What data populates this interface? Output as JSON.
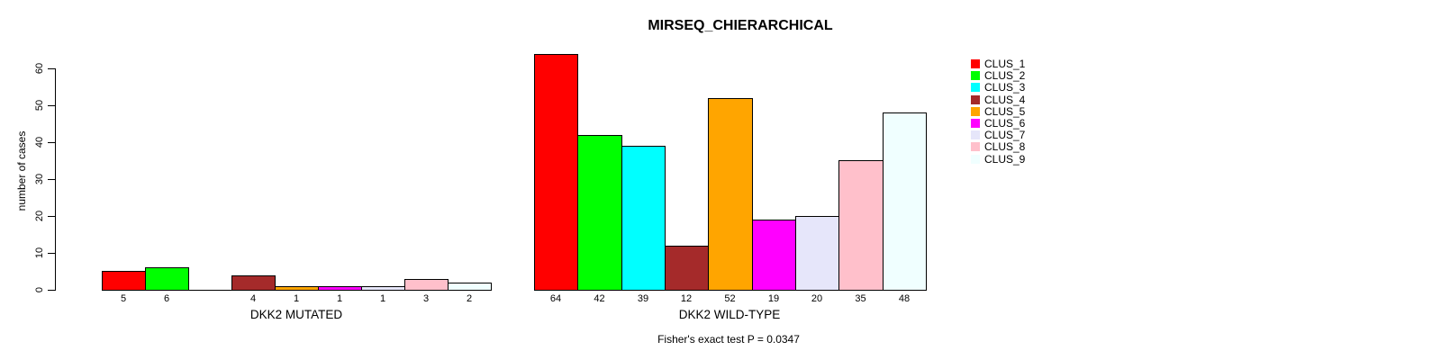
{
  "chart_data": {
    "type": "bar",
    "title": "MIRSEQ_CHIERARCHICAL",
    "ylabel": "number of cases",
    "footnote": "Fisher's exact test P = 0.0347",
    "ylim": [
      0,
      60
    ],
    "yticks": [
      0,
      10,
      20,
      30,
      40,
      50,
      60
    ],
    "grid": false,
    "legend_position": "top-right",
    "categories": [
      "CLUS_1",
      "CLUS_2",
      "CLUS_3",
      "CLUS_4",
      "CLUS_5",
      "CLUS_6",
      "CLUS_7",
      "CLUS_8",
      "CLUS_9"
    ],
    "colors": [
      "#FF0000",
      "#00FF00",
      "#00FFFF",
      "#A52A2A",
      "#FFA500",
      "#FF00FF",
      "#E6E6FA",
      "#FFC0CB",
      "#F0FFFF"
    ],
    "groups": [
      {
        "label": "DKK2 MUTATED",
        "values": [
          5,
          6,
          0,
          4,
          1,
          1,
          1,
          3,
          2
        ]
      },
      {
        "label": "DKK2 WILD-TYPE",
        "values": [
          64,
          42,
          39,
          12,
          52,
          19,
          20,
          35,
          48
        ]
      }
    ]
  }
}
